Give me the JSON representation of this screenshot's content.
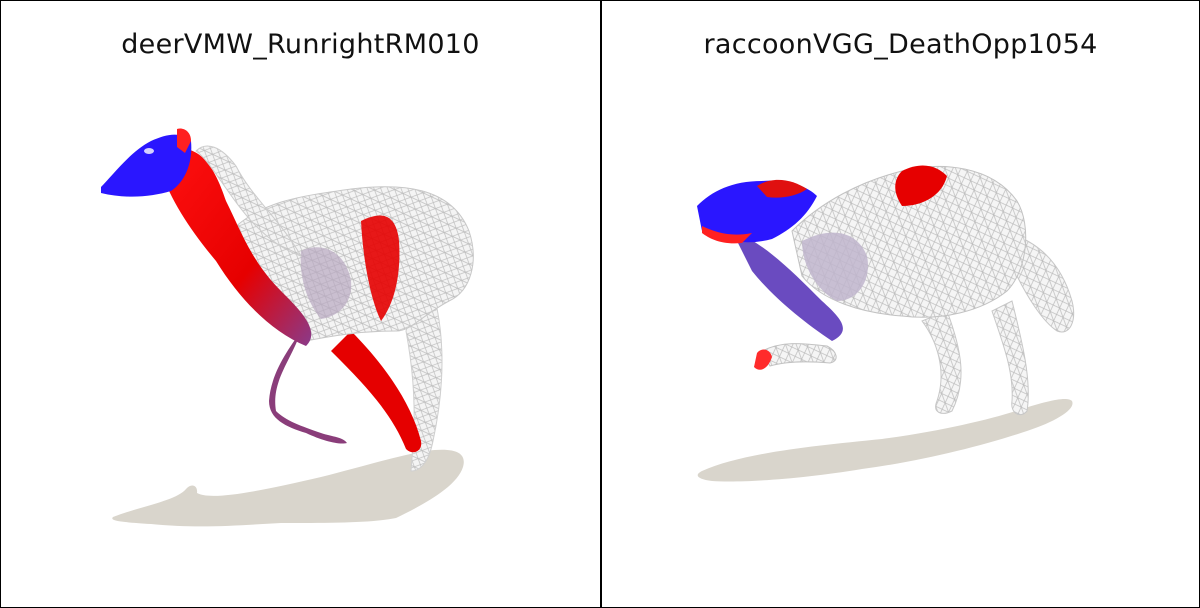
{
  "panels": [
    {
      "title": "deerVMW_RunrightRM010",
      "subject": "deer-mesh"
    },
    {
      "title": "raccoonVGG_DeathOpp1054",
      "subject": "raccoon-mesh"
    }
  ],
  "colors": {
    "background": "#ffffff",
    "border": "#000000",
    "shadow": "#d9d5cc",
    "mesh_wire": "#e8e8e8",
    "highlight_red": "#ff0000",
    "highlight_blue": "#2a16ff"
  }
}
